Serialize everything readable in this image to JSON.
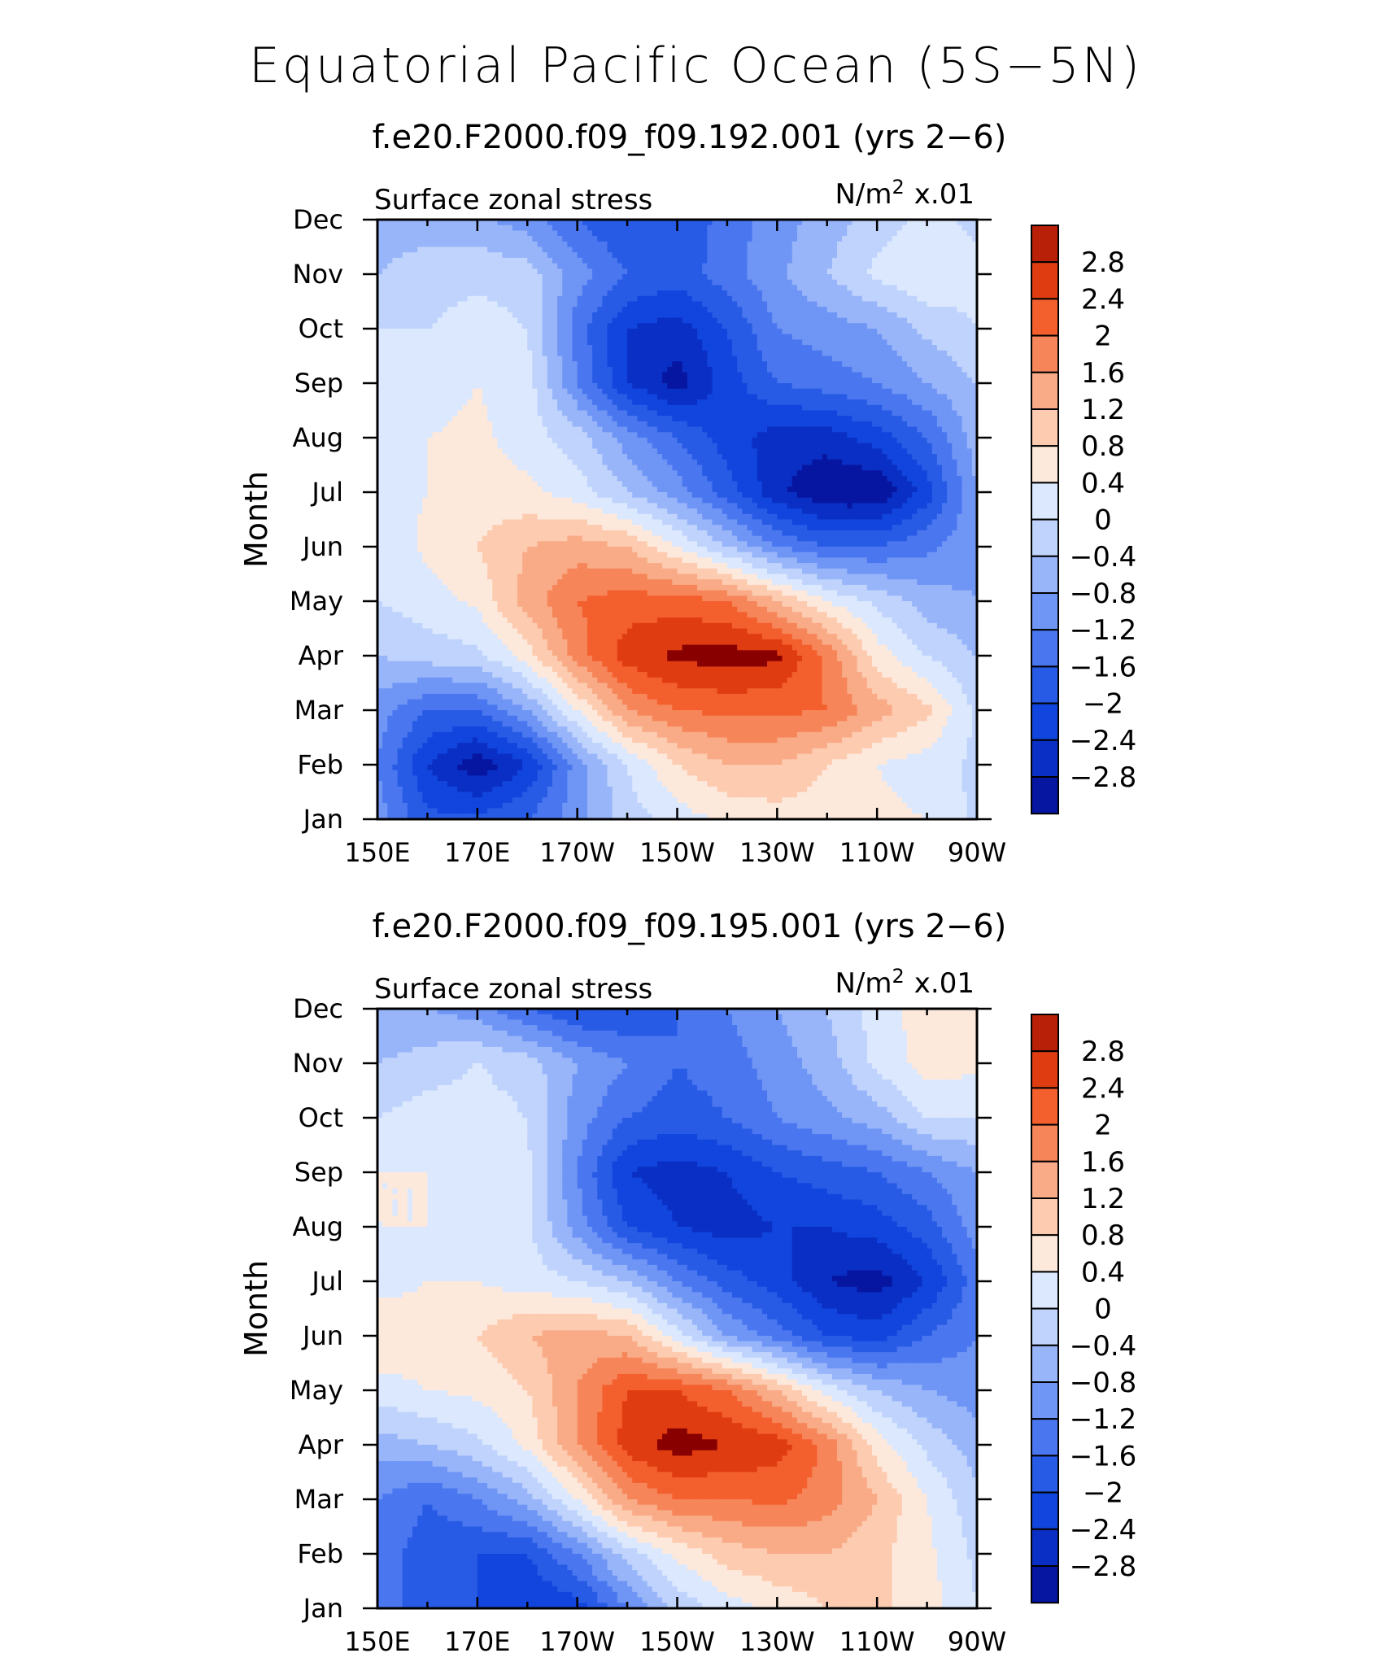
{
  "main_title": "Equatorial Pacific Ocean (5S−5N)",
  "colors": {
    "levels": [
      "#00007f",
      "#0616a0",
      "#0a2fc4",
      "#1145dd",
      "#285be5",
      "#4a77ef",
      "#6f95f5",
      "#98b5fa",
      "#bfd3fc",
      "#dbe8fe",
      "#fde9dc",
      "#fdcbb0",
      "#f9ab87",
      "#f6865a",
      "#f45f2e",
      "#e03c12",
      "#b82008",
      "#880000"
    ],
    "bounds": [
      -3.2,
      -2.8,
      -2.4,
      -2.0,
      -1.6,
      -1.2,
      -0.8,
      -0.4,
      0.0,
      0.4,
      0.8,
      1.2,
      1.6,
      2.0,
      2.4,
      2.8,
      3.2
    ]
  },
  "chart_data": [
    {
      "type": "heatmap",
      "title": "f.e20.F2000.f09_f09.192.001 (yrs 2−6)",
      "left_label": "Surface zonal stress",
      "units_label": "N/m",
      "units_sup": "2",
      "units_scale": "x.01",
      "xlabel": "",
      "ylabel": "Month",
      "x_ticks": [
        "150E",
        "170E",
        "170W",
        "150W",
        "130W",
        "110W",
        "90W"
      ],
      "x_values": [
        150,
        170,
        190,
        210,
        230,
        250,
        270
      ],
      "xlim": [
        150,
        270
      ],
      "y_ticks": [
        "Jan",
        "Feb",
        "Mar",
        "Apr",
        "May",
        "Jun",
        "Jul",
        "Aug",
        "Sep",
        "Oct",
        "Nov",
        "Dec"
      ],
      "ylim": [
        1,
        12
      ],
      "colorbar_labels": [
        "2.8",
        "2.4",
        "2",
        "1.6",
        "1.2",
        "0.8",
        "0.4",
        "0",
        "−0.4",
        "−0.8",
        "−1.2",
        "−1.6",
        "−2",
        "−2.4",
        "−2.8"
      ],
      "grid_longitudes": [
        150,
        160,
        170,
        180,
        190,
        200,
        210,
        220,
        230,
        240,
        250,
        260,
        270
      ],
      "grid_months": [
        1,
        2,
        3,
        4,
        5,
        6,
        7,
        8,
        9,
        10,
        11,
        12
      ],
      "values": [
        [
          -0.6,
          -1.5,
          -1.5,
          -1.2,
          -0.6,
          0.2,
          0.6,
          0.9,
          1.0,
          1.0,
          0.9,
          0.8,
          0.3
        ],
        [
          -0.8,
          -2.0,
          -2.7,
          -2.0,
          -0.6,
          0.4,
          1.2,
          1.6,
          1.6,
          1.2,
          0.8,
          0.6,
          0.3
        ],
        [
          -0.6,
          -1.2,
          -1.2,
          -0.4,
          0.8,
          2.0,
          2.4,
          2.5,
          2.5,
          2.4,
          1.8,
          1.3,
          0.3
        ],
        [
          0.0,
          0.2,
          0.3,
          1.0,
          2.2,
          3.0,
          3.3,
          3.4,
          3.3,
          2.3,
          1.0,
          0.4,
          0.0
        ],
        [
          0.4,
          0.6,
          0.9,
          1.8,
          2.4,
          2.6,
          2.6,
          2.4,
          1.6,
          0.8,
          0.3,
          -0.2,
          -0.4
        ],
        [
          0.5,
          0.9,
          1.2,
          1.6,
          1.8,
          1.6,
          0.8,
          0.0,
          -0.8,
          -1.2,
          -1.2,
          -0.9,
          -0.5
        ],
        [
          0.6,
          0.8,
          1.0,
          0.9,
          0.6,
          0.0,
          -0.6,
          -1.4,
          -2.3,
          -2.8,
          -2.8,
          -1.8,
          -0.4
        ],
        [
          0.6,
          0.8,
          0.9,
          0.6,
          0.2,
          -0.6,
          -1.2,
          -1.8,
          -2.2,
          -2.2,
          -1.8,
          -1.2,
          -0.2
        ],
        [
          0.4,
          0.6,
          0.8,
          0.6,
          -0.8,
          -2.0,
          -2.6,
          -1.8,
          -1.2,
          -1.0,
          -0.8,
          -0.4,
          0.0
        ],
        [
          0.4,
          0.4,
          0.6,
          0.4,
          -1.0,
          -2.0,
          -2.2,
          -1.6,
          -0.8,
          -0.6,
          -0.4,
          0.1,
          0.4
        ],
        [
          0.0,
          0.2,
          0.3,
          0.2,
          -0.6,
          -1.2,
          -1.4,
          -1.0,
          -0.5,
          0.0,
          0.5,
          0.8,
          0.5
        ],
        [
          -0.2,
          -0.2,
          -0.3,
          -0.6,
          -1.2,
          -1.6,
          -1.6,
          -1.0,
          -0.6,
          -0.2,
          0.2,
          0.5,
          0.3
        ]
      ]
    },
    {
      "type": "heatmap",
      "title": "f.e20.F2000.f09_f09.195.001 (yrs 2−6)",
      "left_label": "Surface zonal stress",
      "units_label": "N/m",
      "units_sup": "2",
      "units_scale": "x.01",
      "xlabel": "",
      "ylabel": "Month",
      "x_ticks": [
        "150E",
        "170E",
        "170W",
        "150W",
        "130W",
        "110W",
        "90W"
      ],
      "x_values": [
        150,
        170,
        190,
        210,
        230,
        250,
        270
      ],
      "xlim": [
        150,
        270
      ],
      "y_ticks": [
        "Jan",
        "Feb",
        "Mar",
        "Apr",
        "May",
        "Jun",
        "Jul",
        "Aug",
        "Sep",
        "Oct",
        "Nov",
        "Dec"
      ],
      "ylim": [
        1,
        12
      ],
      "colorbar_labels": [
        "2.8",
        "2.4",
        "2",
        "1.6",
        "1.2",
        "0.8",
        "0.4",
        "0",
        "−0.4",
        "−0.8",
        "−1.2",
        "−1.6",
        "−2",
        "−2.4",
        "−2.8"
      ],
      "grid_longitudes": [
        150,
        160,
        170,
        180,
        190,
        200,
        210,
        220,
        230,
        240,
        250,
        260,
        270
      ],
      "grid_months": [
        1,
        2,
        3,
        4,
        5,
        6,
        7,
        8,
        9,
        10,
        11,
        12
      ],
      "values": [
        [
          -1.0,
          -1.4,
          -1.6,
          -2.0,
          -1.8,
          -0.8,
          0.1,
          0.6,
          0.9,
          1.2,
          1.3,
          1.0,
          0.4
        ],
        [
          -1.0,
          -1.4,
          -1.6,
          -1.6,
          -0.8,
          0.2,
          0.9,
          1.4,
          1.6,
          1.6,
          1.3,
          0.9,
          0.3
        ],
        [
          -0.8,
          -1.2,
          -0.8,
          -0.2,
          0.8,
          2.0,
          2.4,
          2.4,
          2.5,
          2.2,
          1.6,
          0.8,
          0.1
        ],
        [
          -0.2,
          0.0,
          0.3,
          0.9,
          2.0,
          3.0,
          3.4,
          3.2,
          3.0,
          2.3,
          1.0,
          0.3,
          -0.2
        ],
        [
          0.6,
          0.8,
          0.9,
          1.2,
          2.0,
          2.8,
          2.8,
          2.4,
          1.6,
          0.6,
          0.0,
          -0.4,
          -0.6
        ],
        [
          1.2,
          1.0,
          1.2,
          1.6,
          1.8,
          1.6,
          0.6,
          -0.4,
          -1.0,
          -1.6,
          -1.8,
          -1.2,
          -0.8
        ],
        [
          0.6,
          0.8,
          0.8,
          0.6,
          0.4,
          0.0,
          -0.8,
          -1.4,
          -1.8,
          -2.4,
          -2.6,
          -2.0,
          -1.0
        ],
        [
          0.8,
          0.8,
          0.6,
          0.5,
          -0.6,
          -1.6,
          -2.0,
          -2.2,
          -2.0,
          -2.0,
          -1.8,
          -1.4,
          -0.6
        ],
        [
          0.8,
          0.8,
          0.8,
          0.5,
          -0.8,
          -2.0,
          -2.2,
          -2.0,
          -1.6,
          -1.4,
          -1.2,
          -0.8,
          -0.4
        ],
        [
          0.4,
          0.6,
          0.6,
          0.4,
          -0.6,
          -1.2,
          -1.4,
          -1.2,
          -0.8,
          -0.5,
          -0.2,
          0.4,
          0.4
        ],
        [
          0.0,
          0.2,
          0.4,
          0.2,
          -0.4,
          -0.8,
          -1.2,
          -1.0,
          -0.6,
          -0.2,
          0.5,
          1.0,
          0.9
        ],
        [
          -0.4,
          -0.4,
          -0.6,
          -1.2,
          -1.6,
          -1.6,
          -1.2,
          -0.8,
          -0.4,
          0.0,
          0.6,
          1.0,
          0.9
        ]
      ]
    }
  ]
}
